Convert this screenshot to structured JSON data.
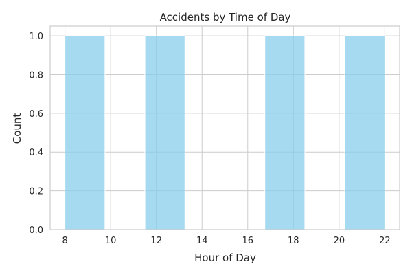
{
  "chart_data": {
    "type": "bar",
    "title": "Accidents by Time of Day",
    "xlabel": "Hour of Day",
    "ylabel": "Count",
    "xlim": [
      7.35,
      22.65
    ],
    "ylim": [
      0,
      1.05
    ],
    "grid": true,
    "bar_color": "#87ceeb",
    "bins": [
      {
        "x_start": 8.0,
        "x_end": 9.75,
        "count": 1
      },
      {
        "x_start": 9.75,
        "x_end": 11.5,
        "count": 0
      },
      {
        "x_start": 11.5,
        "x_end": 13.25,
        "count": 1
      },
      {
        "x_start": 13.25,
        "x_end": 15.0,
        "count": 0
      },
      {
        "x_start": 15.0,
        "x_end": 16.75,
        "count": 0
      },
      {
        "x_start": 16.75,
        "x_end": 18.5,
        "count": 1
      },
      {
        "x_start": 18.5,
        "x_end": 20.25,
        "count": 0
      },
      {
        "x_start": 20.25,
        "x_end": 22.0,
        "count": 1
      }
    ],
    "x_ticks": [
      8,
      10,
      12,
      14,
      16,
      18,
      20,
      22
    ],
    "x_tick_labels": [
      "8",
      "10",
      "12",
      "14",
      "16",
      "18",
      "20",
      "22"
    ],
    "y_ticks": [
      0.0,
      0.2,
      0.4,
      0.6,
      0.8,
      1.0
    ],
    "y_tick_labels": [
      "0.0",
      "0.2",
      "0.4",
      "0.6",
      "0.8",
      "1.0"
    ]
  }
}
